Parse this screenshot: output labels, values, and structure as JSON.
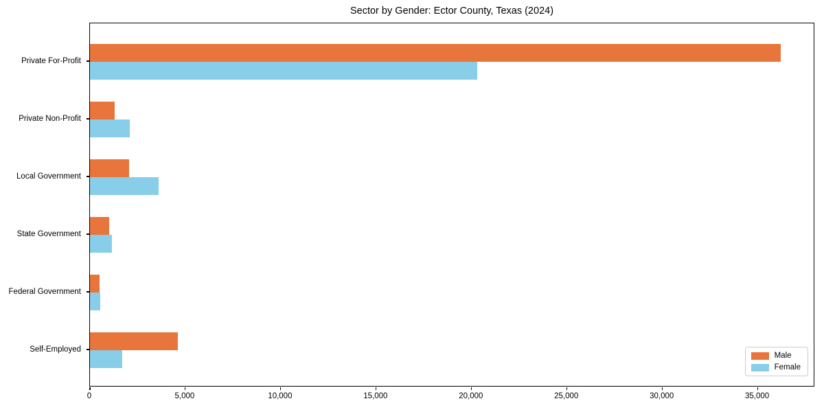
{
  "chart_data": {
    "type": "bar",
    "orientation": "horizontal",
    "title": "Sector by Gender: Ector County, Texas (2024)",
    "categories": [
      "Private For-Profit",
      "Private Non-Profit",
      "Local Government",
      "State Government",
      "Federal Government",
      "Self-Employed"
    ],
    "series": [
      {
        "name": "Male",
        "color": "#E8753C",
        "values": [
          36200,
          1300,
          2050,
          1000,
          500,
          4600
        ]
      },
      {
        "name": "Female",
        "color": "#89CEE8",
        "values": [
          20300,
          2100,
          3600,
          1150,
          530,
          1700
        ]
      }
    ],
    "xlabel": "",
    "ylabel": "",
    "xlim": [
      0,
      38000
    ],
    "x_ticks": [
      0,
      5000,
      10000,
      15000,
      20000,
      25000,
      30000,
      35000
    ],
    "x_tick_labels": [
      "0",
      "5,000",
      "10,000",
      "15,000",
      "20,000",
      "25,000",
      "30,000",
      "35,000"
    ],
    "grid": false,
    "legend": {
      "position": "lower right",
      "entries": [
        "Male",
        "Female"
      ]
    },
    "colors": {
      "background": "#ffffff",
      "spine": "#000000",
      "text": "#000000"
    }
  }
}
